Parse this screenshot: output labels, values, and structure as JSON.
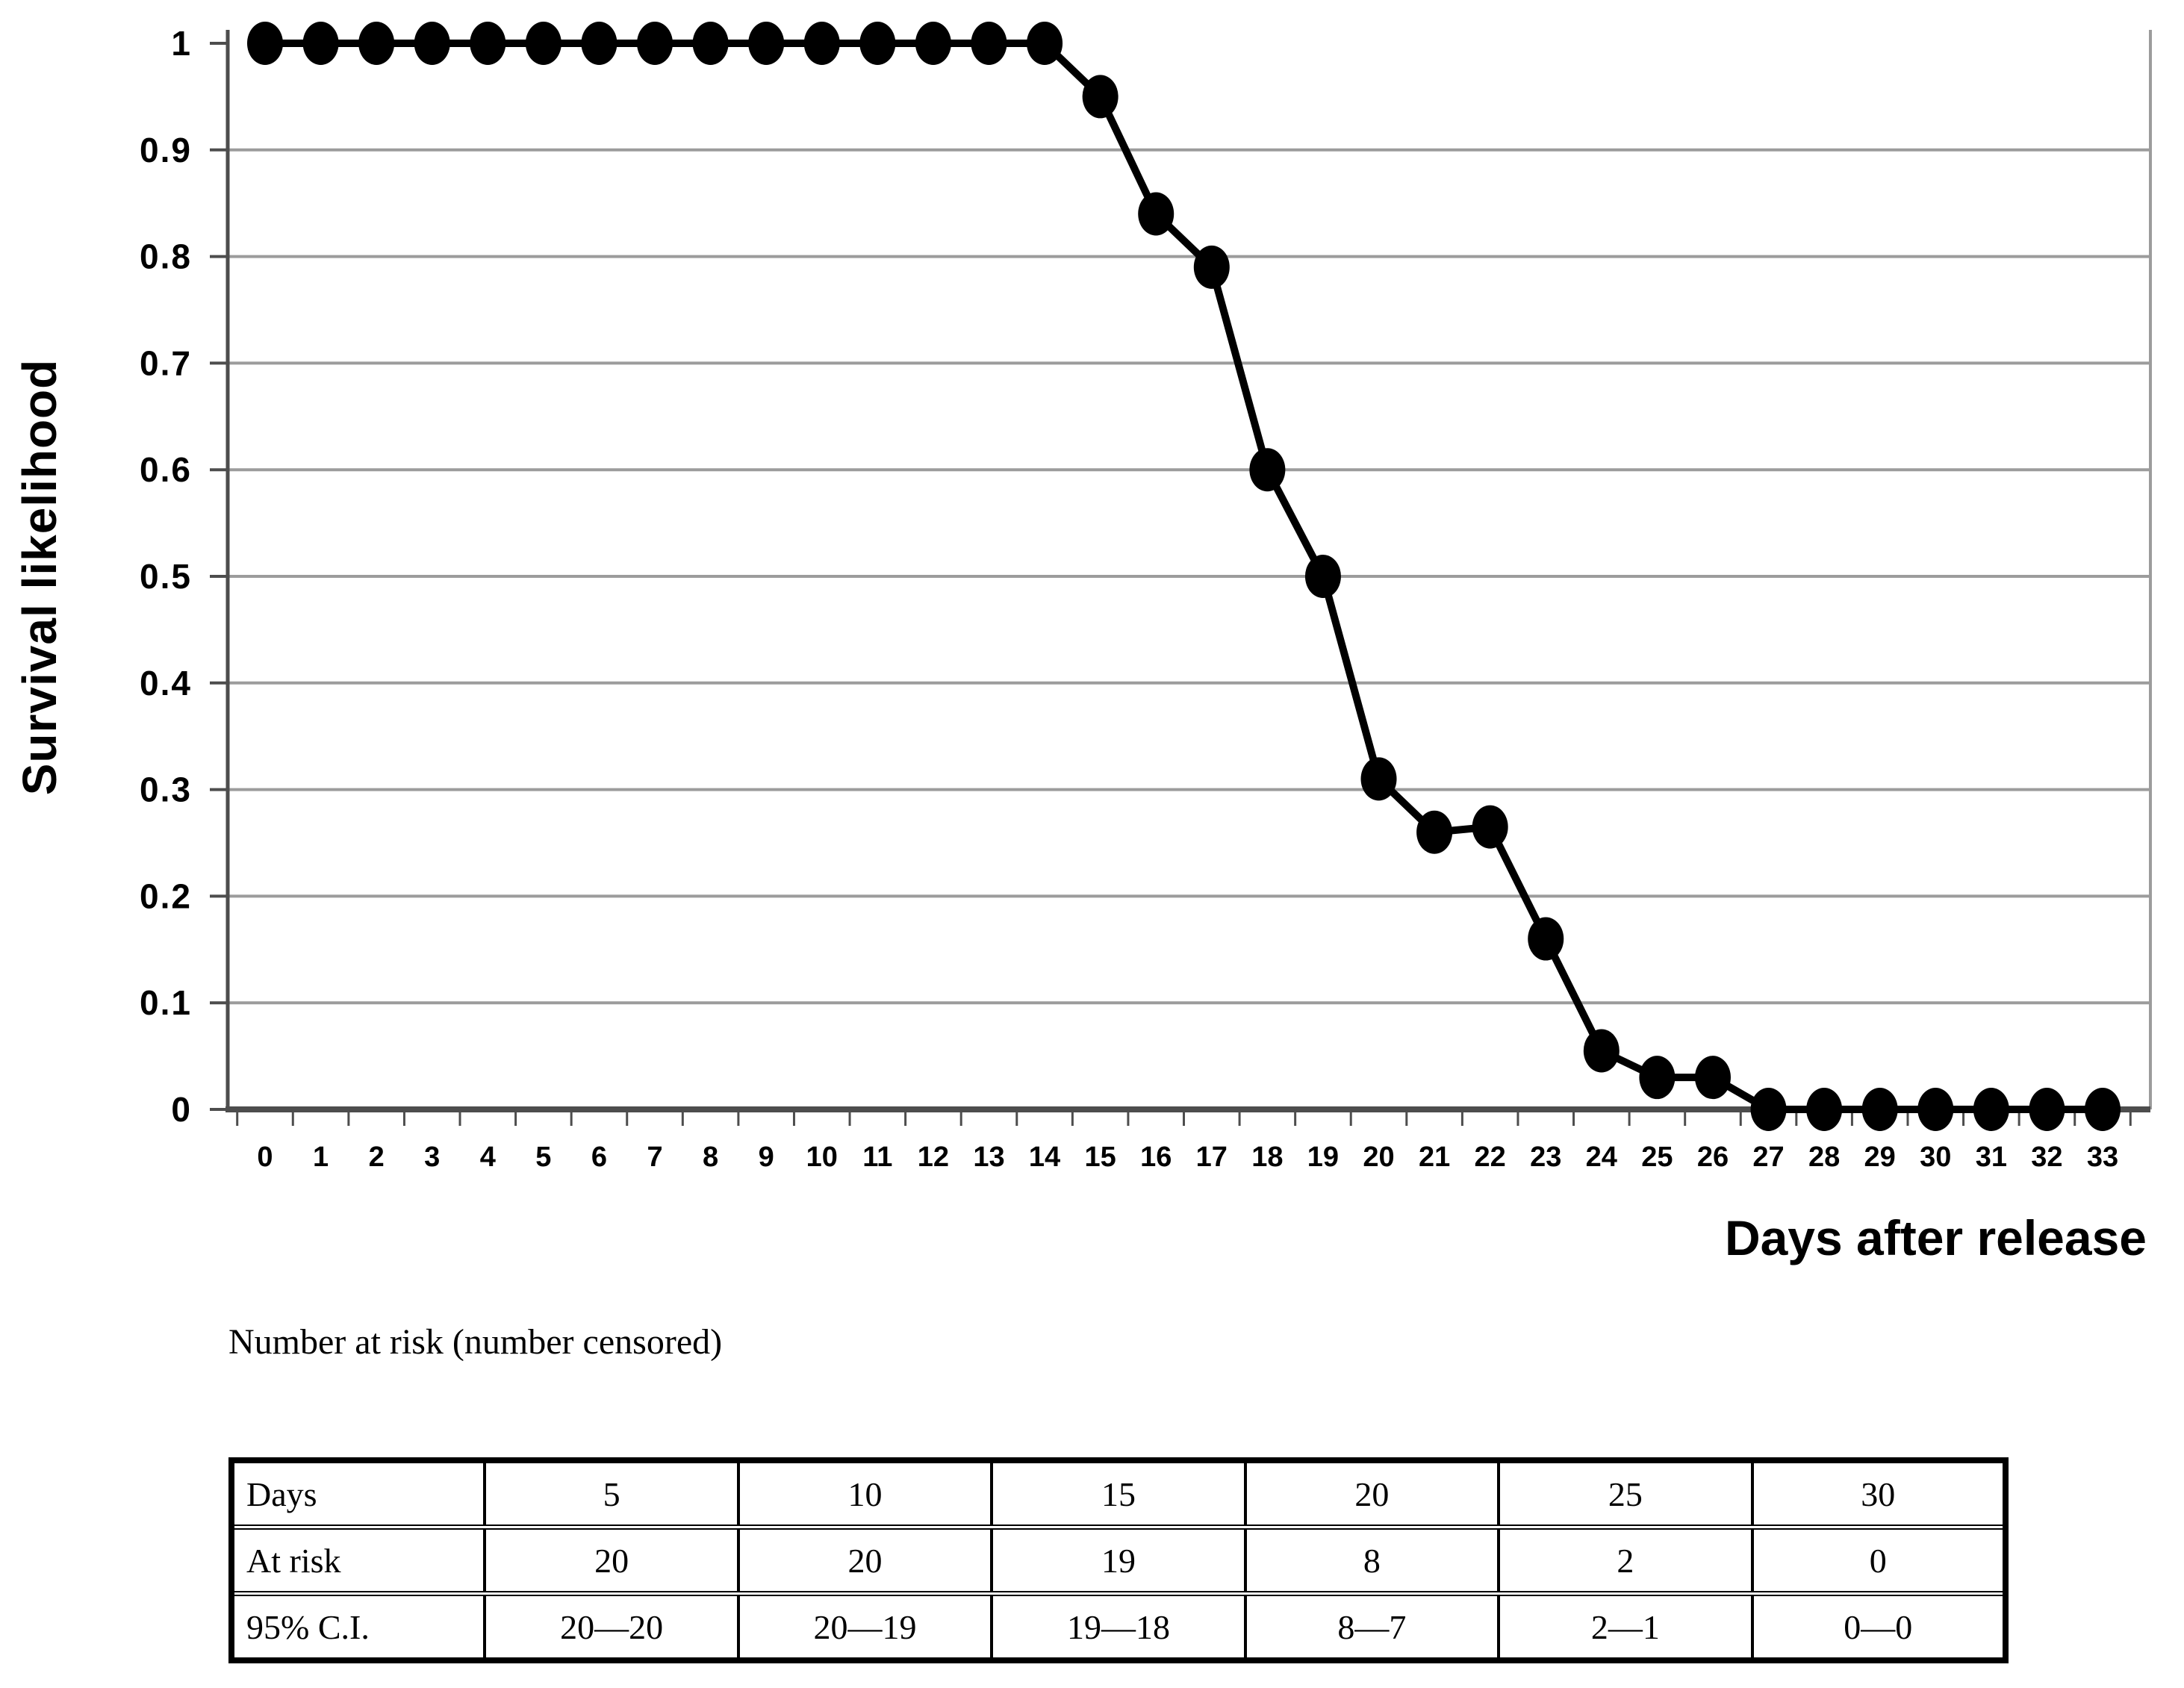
{
  "figure": {
    "background_color": "#ffffff",
    "text_color": "#000000"
  },
  "chart_data": {
    "type": "line",
    "title": "",
    "xlabel": "Days after release",
    "ylabel": "Survival likelihood",
    "x": [
      0,
      1,
      2,
      3,
      4,
      5,
      6,
      7,
      8,
      9,
      10,
      11,
      12,
      13,
      14,
      15,
      16,
      17,
      18,
      19,
      20,
      21,
      22,
      23,
      24,
      25,
      26,
      27,
      28,
      29,
      30,
      31,
      32,
      33
    ],
    "y": [
      1,
      1,
      1,
      1,
      1,
      1,
      1,
      1,
      1,
      1,
      1,
      1,
      1,
      1,
      1,
      0.95,
      0.84,
      0.79,
      0.6,
      0.5,
      0.31,
      0.26,
      0.265,
      0.16,
      0.055,
      0.03,
      0.03,
      0,
      0,
      0,
      0,
      0,
      0,
      0
    ],
    "series_name": "Survival likelihood",
    "xlim": [
      0,
      33
    ],
    "ylim": [
      0,
      1
    ],
    "xticks": [
      0,
      1,
      2,
      3,
      4,
      5,
      6,
      7,
      8,
      9,
      10,
      11,
      12,
      13,
      14,
      15,
      16,
      17,
      18,
      19,
      20,
      21,
      22,
      23,
      24,
      25,
      26,
      27,
      28,
      29,
      30,
      31,
      32,
      33
    ],
    "xtick_labels": [
      "0",
      "1",
      "2",
      "3",
      "4",
      "5",
      "6",
      "7",
      "8",
      "9",
      "10",
      "11",
      "12",
      "13",
      "14",
      "15",
      "16",
      "17",
      "18",
      "19",
      "20",
      "21",
      "22",
      "23",
      "24",
      "25",
      "26",
      "27",
      "28",
      "29",
      "30",
      "31",
      "32",
      "33"
    ],
    "yticks": [
      0,
      0.1,
      0.2,
      0.3,
      0.4,
      0.5,
      0.6,
      0.7,
      0.8,
      0.9,
      1
    ],
    "ytick_labels": [
      "0",
      "0.1",
      "0.2",
      "0.3",
      "0.4",
      "0.5",
      "0.6",
      "0.7",
      "0.8",
      "0.9",
      "1"
    ],
    "grid": "horizontal-only",
    "legend": "none",
    "marker": "filled-black-ellipse",
    "colors": {
      "series_line": "#000000",
      "marker_fill": "#000000",
      "gridline": "#9c9c9c",
      "axis_line": "#4d4d4d",
      "tick": "#4d4d4d",
      "tick_label": "#000000"
    }
  },
  "risk_table": {
    "caption": "Number at risk (number censored)",
    "rows": [
      [
        "Days",
        "5",
        "10",
        "15",
        "20",
        "25",
        "30"
      ],
      [
        "At risk",
        "20",
        "20",
        "19",
        "8",
        "2",
        "0"
      ],
      [
        "95% C.I.",
        "20—20",
        "20—19",
        "19—18",
        "8—7",
        "2—1",
        "0—0"
      ]
    ]
  }
}
